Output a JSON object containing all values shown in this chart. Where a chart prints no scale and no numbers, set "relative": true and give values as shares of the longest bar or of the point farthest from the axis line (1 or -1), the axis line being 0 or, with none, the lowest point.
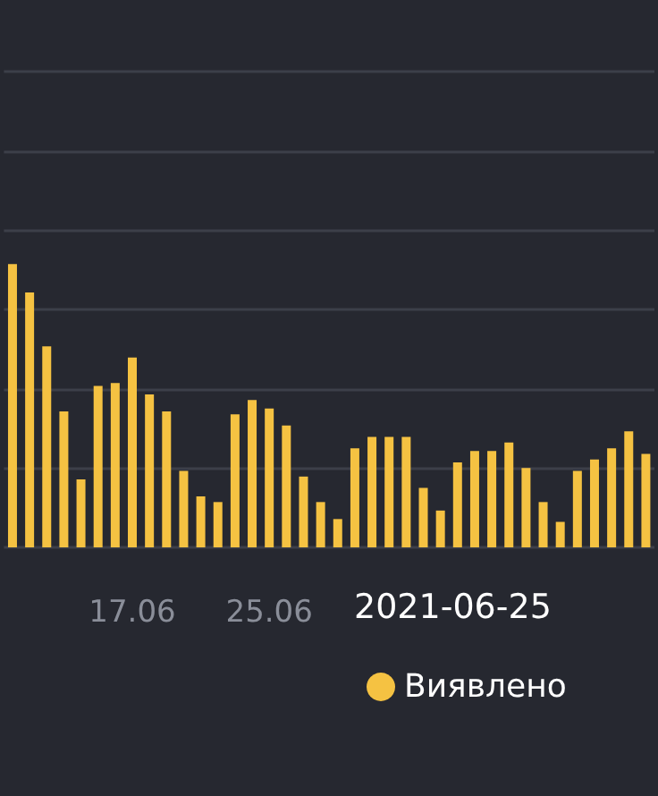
{
  "chart_data": {
    "type": "bar",
    "relative": true,
    "grid": "y",
    "legend": "bottom",
    "annotations": [
      "2021-06-25"
    ],
    "categories": [
      null,
      null,
      null,
      null,
      null,
      null,
      null,
      "17.06",
      null,
      null,
      null,
      null,
      null,
      null,
      null,
      "25.06",
      null,
      null,
      null,
      null,
      null,
      null,
      null,
      null,
      null,
      null,
      null,
      null,
      null,
      null,
      null,
      null,
      null,
      null,
      null,
      null,
      null,
      null
    ],
    "series": [
      {
        "name": "Виявлено",
        "color": "#f5c242",
        "values": [
          1,
          0.9,
          0.71,
          0.48,
          0.24,
          0.57,
          0.58,
          0.67,
          0.54,
          0.48,
          0.27,
          0.18,
          0.16,
          0.47,
          0.52,
          0.49,
          0.43,
          0.25,
          0.16,
          0.1,
          0.35,
          0.39,
          0.39,
          0.39,
          0.21,
          0.13,
          0.3,
          0.34,
          0.34,
          0.37,
          0.28,
          0.16,
          0.09,
          0.27,
          0.31,
          0.35,
          0.41,
          0.33
        ]
      }
    ]
  }
}
